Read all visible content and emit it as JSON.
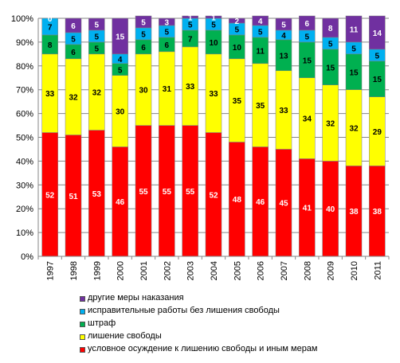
{
  "chart_data": {
    "type": "bar",
    "stacked": true,
    "percent": true,
    "categories": [
      "1997",
      "1998",
      "1999",
      "2000",
      "2001",
      "2002",
      "2003",
      "2004",
      "2005",
      "2006",
      "2007",
      "2008",
      "2009",
      "2010",
      "2011"
    ],
    "series": [
      {
        "name": "условное осуждение к лишению свободы и иным мерам",
        "color": "#ff0000",
        "values": [
          52,
          51,
          53,
          46,
          55,
          55,
          55,
          52,
          48,
          46,
          45,
          41,
          40,
          38,
          38
        ]
      },
      {
        "name": "лишение свободы",
        "color": "#ffff00",
        "values": [
          33,
          32,
          32,
          30,
          30,
          31,
          33,
          33,
          35,
          35,
          33,
          34,
          32,
          32,
          29
        ]
      },
      {
        "name": "штраф",
        "color": "#00b050",
        "values": [
          8,
          6,
          5,
          5,
          6,
          6,
          7,
          10,
          10,
          11,
          13,
          15,
          15,
          15,
          15
        ]
      },
      {
        "name": "исправительные работы без лишения свободы",
        "color": "#00b0f0",
        "values": [
          7,
          5,
          5,
          4,
          5,
          5,
          5,
          5,
          5,
          5,
          4,
          5,
          5,
          5,
          5
        ]
      },
      {
        "name": "другие меры наказания",
        "color": "#7030a0",
        "values": [
          0,
          6,
          5,
          15,
          5,
          3,
          1,
          1,
          2,
          4,
          5,
          6,
          8,
          11,
          14
        ]
      }
    ],
    "yticks": [
      "0%",
      "10%",
      "20%",
      "30%",
      "40%",
      "50%",
      "60%",
      "70%",
      "80%",
      "90%",
      "100%"
    ],
    "ylim": [
      0,
      100
    ],
    "grid": true,
    "legend_position": "bottom"
  }
}
